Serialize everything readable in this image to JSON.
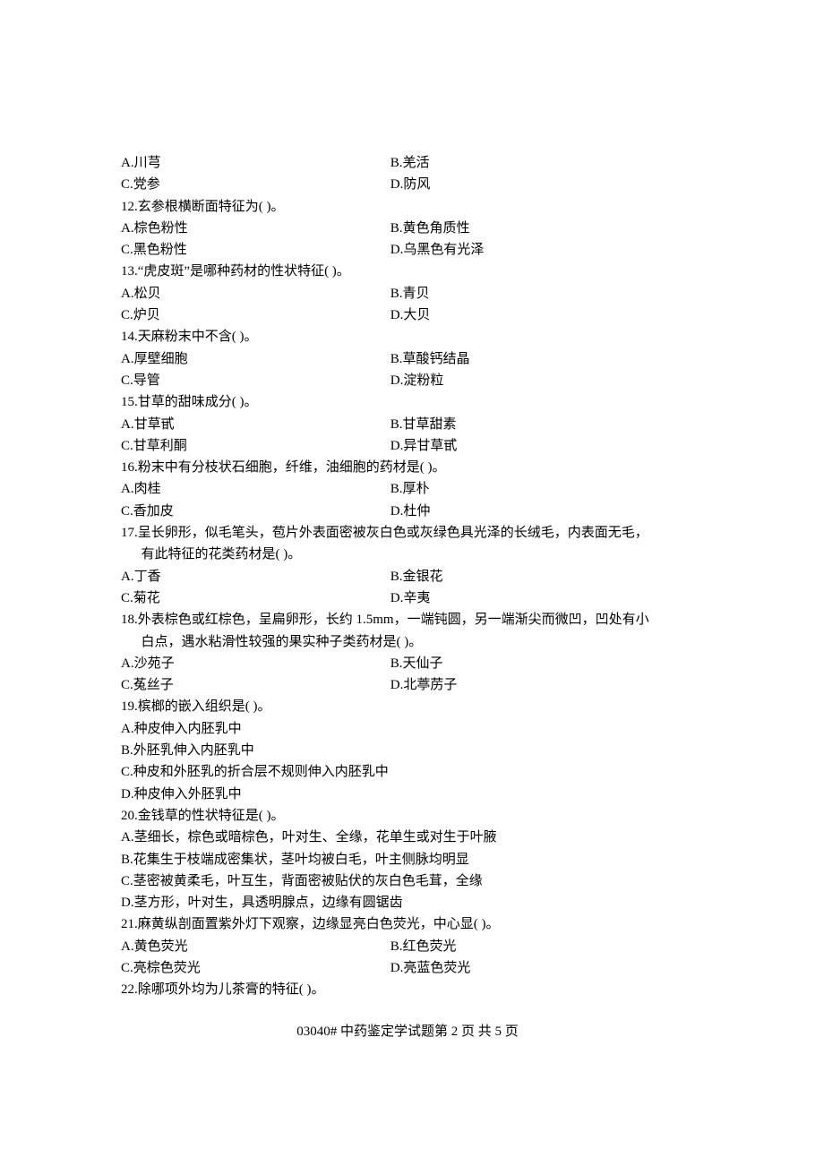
{
  "q11_a": "A.川芎",
  "q11_b": "B.羌活",
  "q11_c": "C.党参",
  "q11_d": "D.防风",
  "q12": "12.玄参根横断面特征为(          )。",
  "q12_a": "A.棕色粉性",
  "q12_b": "B.黄色角质性",
  "q12_c": "C.黑色粉性",
  "q12_d": "D.乌黑色有光泽",
  "q13": "13.“虎皮斑”是哪种药材的性状特征(          )。",
  "q13_a": "A.松贝",
  "q13_b": "B.青贝",
  "q13_c": "C.炉贝",
  "q13_d": "D.大贝",
  "q14": "14.天麻粉末中不含(          )。",
  "q14_a": "A.厚壁细胞",
  "q14_b": "B.草酸钙结晶",
  "q14_c": "C.导管",
  "q14_d": "D.淀粉粒",
  "q15": "15.甘草的甜味成分(          )。",
  "q15_a": "A.甘草甙",
  "q15_b": "B.甘草甜素",
  "q15_c": "C.甘草利酮",
  "q15_d": "D.异甘草甙",
  "q16": "16.粉末中有分枝状石细胞，纤维，油细胞的药材是(          )。",
  "q16_a": "A.肉桂",
  "q16_b": "B.厚朴",
  "q16_c": "C.香加皮",
  "q16_d": "D.杜仲",
  "q17_l1": "17.呈长卵形，似毛笔头，苞片外表面密被灰白色或灰绿色具光泽的长绒毛，内表面无毛，",
  "q17_l2": "有此特征的花类药材是(          )。",
  "q17_a": "A.丁香",
  "q17_b": "B.金银花",
  "q17_c": "C.菊花",
  "q17_d": "D.辛夷",
  "q18_l1": "18.外表棕色或红棕色，呈扁卵形，长约 1.5mm，一端钝圆，另一端渐尖而微凹，凹处有小",
  "q18_l2": "白点，遇水粘滑性较强的果实种子类药材是(          )。",
  "q18_a": "A.沙苑子",
  "q18_b": "B.天仙子",
  "q18_c": "C.菟丝子",
  "q18_d": "D.北葶苈子",
  "q19": "19.槟榔的嵌入组织是(          )。",
  "q19_a": "A.种皮伸入内胚乳中",
  "q19_b": "B.外胚乳伸入内胚乳中",
  "q19_c": "C.种皮和外胚乳的折合层不规则伸入内胚乳中",
  "q19_d": "D.种皮伸入外胚乳中",
  "q20": "20.金钱草的性状特征是(          )。",
  "q20_a": "A.茎细长，棕色或暗棕色，叶对生、全缘，花单生或对生于叶腋",
  "q20_b": "B.花集生于枝端成密集状，茎叶均被白毛，叶主侧脉均明显",
  "q20_c": "C.茎密被黄柔毛，叶互生，背面密被贴伏的灰白色毛茸，全缘",
  "q20_d": "D.茎方形，叶对生，具透明腺点，边缘有圆锯齿",
  "q21": "21.麻黄纵剖面置紫外灯下观察，边缘显亮白色荧光，中心显(          )。",
  "q21_a": "A.黄色荧光",
  "q21_b": "B.红色荧光",
  "q21_c": "C.亮棕色荧光",
  "q21_d": "D.亮蓝色荧光",
  "q22": "22.除哪项外均为儿茶膏的特征(          )。",
  "footer": "03040# 中药鉴定学试题第 2 页 共 5 页"
}
